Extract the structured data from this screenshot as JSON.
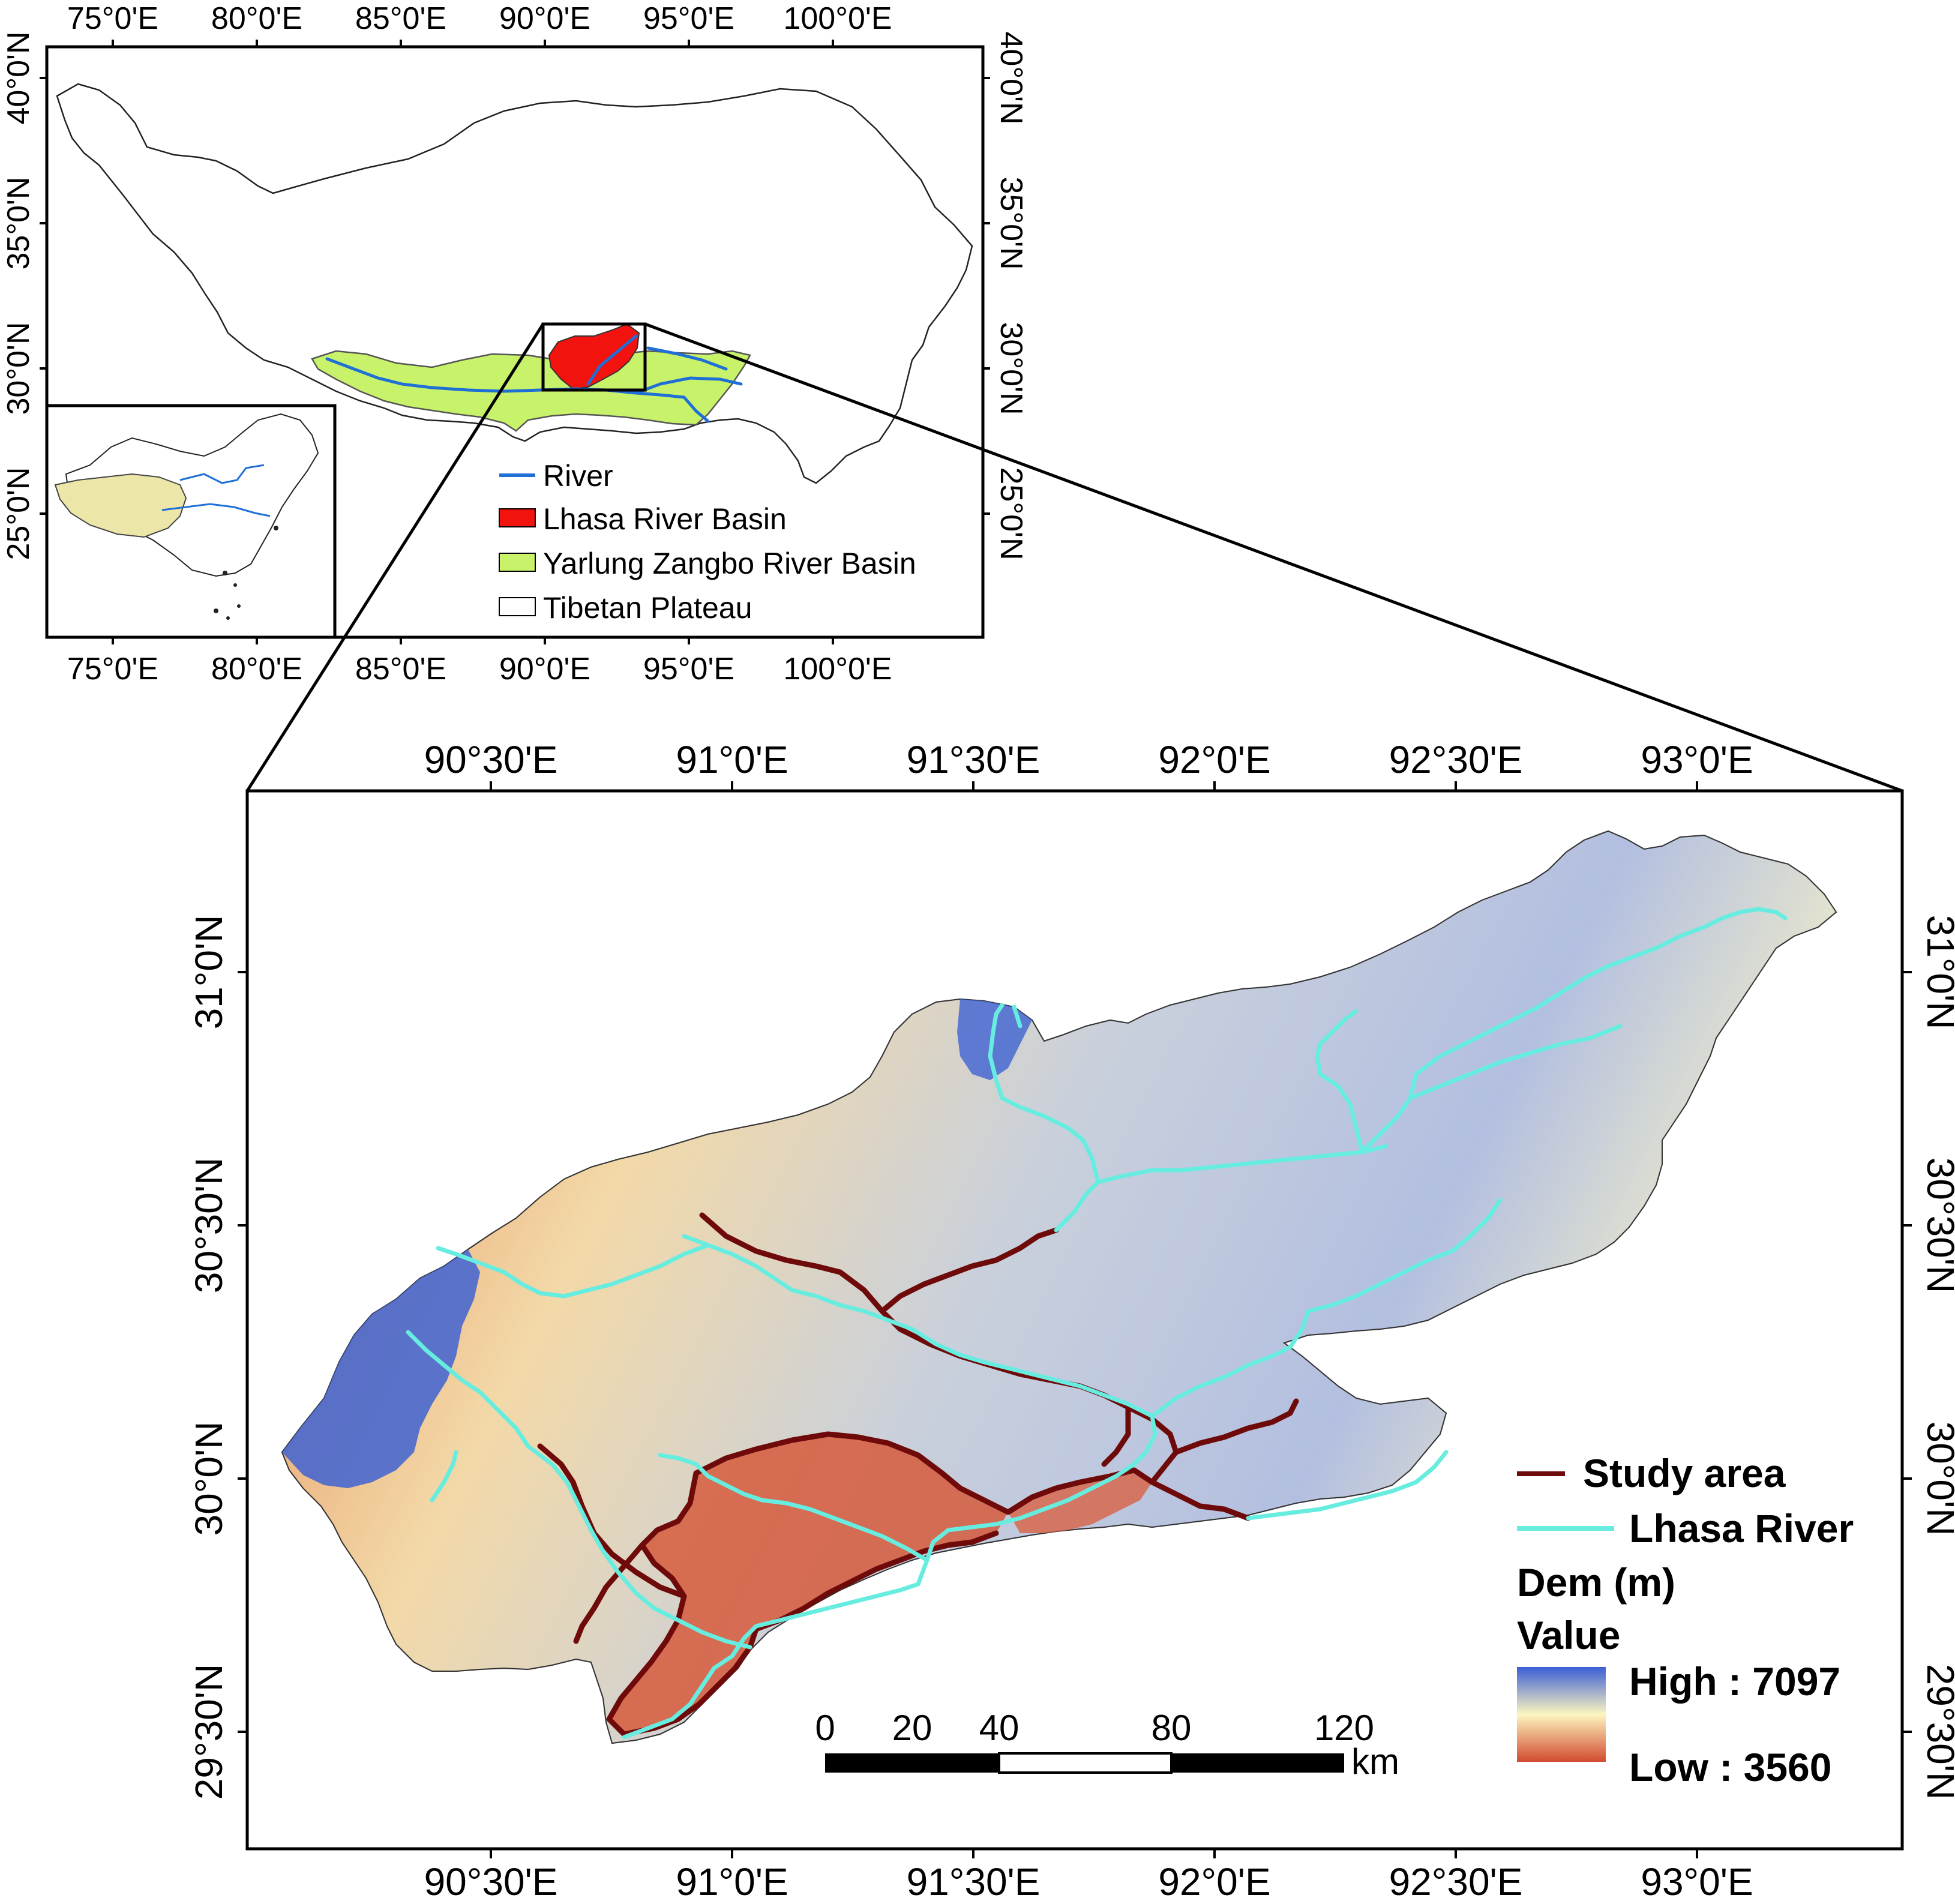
{
  "overview_map": {
    "x_ticks": [
      "75°0'E",
      "80°0'E",
      "85°0'E",
      "90°0'E",
      "95°0'E",
      "100°0'E"
    ],
    "y_ticks": [
      "40°0'N",
      "35°0'N",
      "30°0'N",
      "25°0'N"
    ],
    "legend": [
      {
        "label": "River",
        "symbol": "line",
        "color": "#1f6fd6"
      },
      {
        "label": "Lhasa River Basin",
        "symbol": "box",
        "color": "#f2120e"
      },
      {
        "label": "Yarlung Zangbo River Basin",
        "symbol": "box",
        "color": "#c8f26a"
      },
      {
        "label": "Tibetan Plateau",
        "symbol": "box",
        "color": "#ffffff"
      }
    ]
  },
  "inset_map": {
    "plateau_color": "#ece6a8"
  },
  "detail_map": {
    "x_ticks": [
      "90°30'E",
      "91°0'E",
      "91°30'E",
      "92°0'E",
      "92°30'E",
      "93°0'E"
    ],
    "y_ticks": [
      "31°0'N",
      "30°30'N",
      "30°0'N",
      "29°30'N"
    ],
    "legend": {
      "study_area": {
        "label": "Study area",
        "color": "#6e0a0a"
      },
      "river": {
        "label": "Lhasa River",
        "color": "#67ede0"
      },
      "dem_title": "Dem (m)",
      "value_title": "Value",
      "high_label": "High : 7097",
      "low_label": "Low : 3560",
      "ramp_colors": [
        "#3b5ed6",
        "#fdf6c0",
        "#d24a30"
      ]
    },
    "scale_bar": {
      "labels": [
        "0",
        "20",
        "40",
        "80",
        "120"
      ],
      "unit": "km"
    }
  }
}
